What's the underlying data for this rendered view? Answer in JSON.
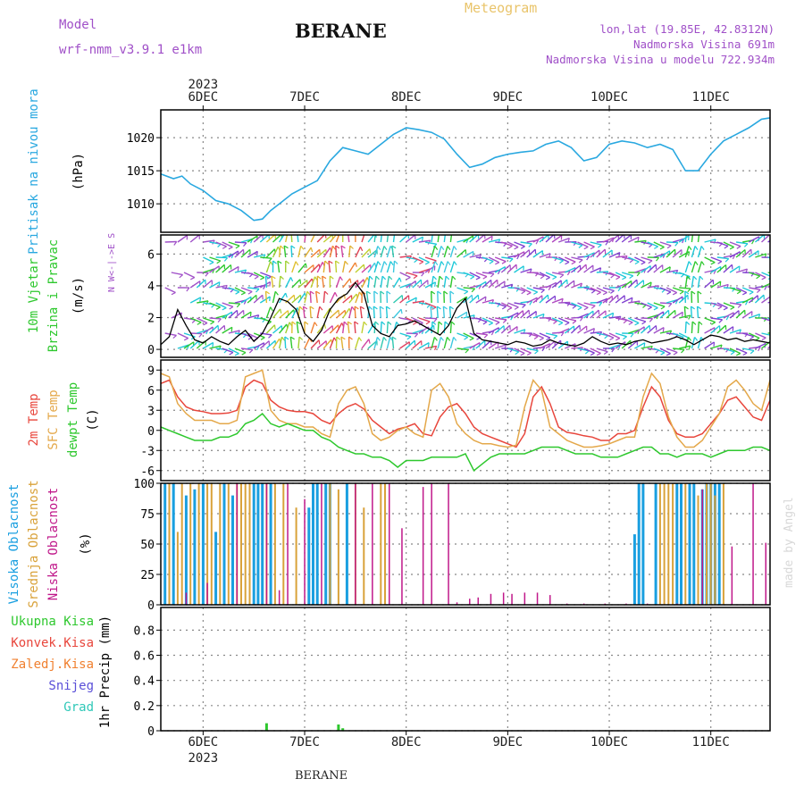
{
  "header": {
    "model_label": "Model",
    "model_name": "wrf-nmm_v3.9.1 e1km",
    "station": "BERANE",
    "meteogram_label": "Meteogram",
    "lonlat": "lon,lat (19.85E, 42.8312N)",
    "elevation": "Nadmorska Visina 691m",
    "model_elevation": "Nadmorska Visina u modelu 722.934m",
    "footer_station": "BERANE",
    "watermark": "made by Angel"
  },
  "colors": {
    "pressure": "#29a8e0",
    "temp2m": "#e8463c",
    "sfc": "#e4a84a",
    "dew": "#2ec82e",
    "high_cloud": "#1a9fe0",
    "mid_cloud": "#d9a23a",
    "low_cloud": "#c0188a",
    "purple_label": "#a050c8",
    "grid": "#888888"
  },
  "time_axis": {
    "year_label": "2023",
    "day_labels": [
      "6DEC",
      "7DEC",
      "8DEC",
      "9DEC",
      "10DEC",
      "11DEC"
    ],
    "start_hour": -10,
    "end_hour": 134
  },
  "chart_data": [
    {
      "type": "line",
      "name": "pressure",
      "ylabel_lines": [
        "Pritisak na nivou mora",
        "(hPa)"
      ],
      "yticks": [
        1010,
        1015,
        1020
      ],
      "ylim": [
        1005.7,
        1024.2
      ],
      "x": [
        -10,
        -7,
        -5,
        -3,
        0,
        3,
        6,
        9,
        12,
        14,
        16,
        18,
        21,
        24,
        27,
        30,
        33,
        36,
        39,
        42,
        45,
        48,
        51,
        54,
        57,
        60,
        63,
        66,
        69,
        72,
        75,
        78,
        81,
        84,
        87,
        90,
        93,
        96,
        99,
        102,
        105,
        108,
        111,
        114,
        117,
        120,
        123,
        126,
        129,
        132,
        134
      ],
      "series": [
        {
          "key": "slp",
          "values": [
            1014.5,
            1013.8,
            1014.2,
            1013.0,
            1012.0,
            1010.5,
            1010.0,
            1009.0,
            1007.5,
            1007.7,
            1009.0,
            1010.0,
            1011.5,
            1012.5,
            1013.5,
            1016.5,
            1018.5,
            1018.0,
            1017.5,
            1019.0,
            1020.5,
            1021.5,
            1021.2,
            1020.8,
            1019.8,
            1017.5,
            1015.5,
            1016.0,
            1017.0,
            1017.5,
            1017.8,
            1018.0,
            1019.0,
            1019.5,
            1018.5,
            1016.5,
            1017.0,
            1019.0,
            1019.5,
            1019.2,
            1018.5,
            1019.0,
            1018.2,
            1015.0,
            1015.0,
            1017.5,
            1019.5,
            1020.5,
            1021.5,
            1022.8,
            1023.0
          ]
        }
      ]
    },
    {
      "type": "line",
      "name": "wind",
      "ylabel_lines": [
        "10m Vjetar",
        "Brzina i Pravac",
        "(m/s)"
      ],
      "compass_label": "N  W<-|->E  S",
      "yticks": [
        0,
        2,
        4,
        6
      ],
      "ylim": [
        -0.5,
        7.2
      ],
      "x": [
        -10,
        -8,
        -6,
        -4,
        -2,
        0,
        2,
        4,
        6,
        8,
        10,
        12,
        14,
        16,
        18,
        20,
        22,
        24,
        26,
        28,
        30,
        32,
        34,
        36,
        38,
        40,
        42,
        44,
        46,
        48,
        50,
        52,
        54,
        56,
        58,
        60,
        62,
        64,
        66,
        68,
        70,
        72,
        74,
        76,
        78,
        80,
        82,
        84,
        86,
        88,
        90,
        92,
        94,
        96,
        98,
        100,
        102,
        104,
        106,
        108,
        110,
        112,
        114,
        116,
        118,
        120,
        122,
        124,
        126,
        128,
        130,
        132,
        134
      ],
      "series": [
        {
          "key": "speed",
          "values": [
            0.3,
            0.8,
            2.5,
            1.5,
            0.6,
            0.4,
            0.8,
            0.5,
            0.3,
            0.8,
            1.2,
            0.5,
            1.0,
            2.0,
            3.2,
            3.0,
            2.5,
            1.0,
            0.5,
            1.2,
            2.5,
            3.2,
            3.5,
            4.2,
            3.5,
            1.5,
            1.0,
            0.8,
            1.5,
            1.6,
            1.8,
            1.5,
            1.2,
            0.9,
            1.5,
            2.6,
            3.2,
            1.0,
            0.6,
            0.5,
            0.4,
            0.3,
            0.5,
            0.4,
            0.2,
            0.3,
            0.6,
            0.4,
            0.3,
            0.2,
            0.4,
            0.8,
            0.5,
            0.3,
            0.4,
            0.3,
            0.5,
            0.6,
            0.4,
            0.5,
            0.6,
            0.8,
            0.6,
            0.3,
            0.6,
            0.9,
            0.8,
            0.6,
            0.7,
            0.5,
            0.6,
            0.5,
            0.4
          ]
        }
      ]
    },
    {
      "type": "line",
      "name": "temperature",
      "ylabel_lines": [
        "2m Temp",
        "SFC Temp",
        "dewpt Temp",
        "(C)"
      ],
      "yticks": [
        -6,
        -3,
        0,
        3,
        6,
        9
      ],
      "ylim": [
        -7.5,
        10.5
      ],
      "x": [
        -10,
        -8,
        -6,
        -4,
        -2,
        0,
        2,
        4,
        6,
        8,
        10,
        12,
        14,
        16,
        18,
        20,
        22,
        24,
        26,
        28,
        30,
        32,
        34,
        36,
        38,
        40,
        42,
        44,
        46,
        48,
        50,
        52,
        54,
        56,
        58,
        60,
        62,
        64,
        66,
        68,
        70,
        72,
        74,
        76,
        78,
        80,
        82,
        84,
        86,
        88,
        90,
        92,
        94,
        96,
        98,
        100,
        102,
        104,
        106,
        108,
        110,
        112,
        114,
        116,
        118,
        120,
        122,
        124,
        126,
        128,
        130,
        132,
        134
      ],
      "series": [
        {
          "key": "t2m",
          "values": [
            7.0,
            7.5,
            5.0,
            3.5,
            3.0,
            2.8,
            2.5,
            2.5,
            2.6,
            3.0,
            6.5,
            7.5,
            7.0,
            4.5,
            3.5,
            3.0,
            2.8,
            2.8,
            2.5,
            1.5,
            1.0,
            2.5,
            3.5,
            4.0,
            3.2,
            1.5,
            0.5,
            -0.5,
            0.2,
            0.5,
            1.0,
            -0.5,
            -0.8,
            2.0,
            3.5,
            4.0,
            2.5,
            0.5,
            -0.5,
            -1.0,
            -1.5,
            -2.0,
            -2.5,
            -0.5,
            5.0,
            6.5,
            4.0,
            0.5,
            -0.3,
            -0.5,
            -0.8,
            -1.0,
            -1.5,
            -1.5,
            -0.5,
            -0.5,
            0.0,
            3.5,
            6.5,
            5.0,
            1.5,
            -0.5,
            -1.0,
            -1.0,
            -0.5,
            1.0,
            2.5,
            4.5,
            5.0,
            3.5,
            2.0,
            1.5,
            4.5
          ]
        },
        {
          "key": "sfc",
          "values": [
            8.5,
            8.0,
            4.0,
            2.5,
            1.5,
            1.5,
            1.5,
            1.0,
            1.0,
            1.5,
            8.0,
            8.5,
            9.0,
            3.0,
            1.5,
            1.0,
            1.0,
            0.5,
            0.5,
            -0.5,
            -1.0,
            4.0,
            6.0,
            6.5,
            4.0,
            -0.5,
            -1.5,
            -1.0,
            0.0,
            0.5,
            -0.5,
            -1.0,
            6.0,
            7.0,
            5.0,
            1.0,
            -0.5,
            -1.5,
            -2.0,
            -2.0,
            -2.3,
            -2.5,
            -2.2,
            3.5,
            7.5,
            6.0,
            0.5,
            -0.5,
            -1.5,
            -2.0,
            -2.5,
            -2.5,
            -2.3,
            -2.0,
            -1.5,
            -1.0,
            -1.0,
            5.0,
            8.5,
            7.0,
            2.0,
            -1.0,
            -2.5,
            -2.5,
            -1.5,
            0.5,
            2.5,
            6.5,
            7.5,
            6.0,
            4.0,
            3.0,
            7.5
          ]
        },
        {
          "key": "dew",
          "values": [
            0.5,
            0.0,
            -0.5,
            -1.0,
            -1.5,
            -1.5,
            -1.5,
            -1.0,
            -1.0,
            -0.5,
            1.0,
            1.5,
            2.5,
            1.0,
            0.5,
            1.0,
            0.5,
            0.0,
            0.0,
            -1.0,
            -1.5,
            -2.5,
            -3.0,
            -3.5,
            -3.5,
            -4.0,
            -4.0,
            -4.5,
            -5.5,
            -4.5,
            -4.5,
            -4.5,
            -4.0,
            -4.0,
            -4.0,
            -4.0,
            -3.5,
            -6.0,
            -5.0,
            -4.0,
            -3.5,
            -3.5,
            -3.5,
            -3.5,
            -3.0,
            -2.5,
            -2.5,
            -2.5,
            -3.0,
            -3.5,
            -3.5,
            -3.5,
            -4.0,
            -4.0,
            -4.0,
            -3.5,
            -3.0,
            -2.5,
            -2.5,
            -3.5,
            -3.5,
            -4.0,
            -3.5,
            -3.5,
            -3.5,
            -4.0,
            -3.5,
            -3.0,
            -3.0,
            -3.0,
            -2.5,
            -2.5,
            -3.0
          ]
        }
      ]
    },
    {
      "type": "bar",
      "name": "cloud_cover",
      "ylabel_lines": [
        "Visoka Oblacnost",
        "Srednja Oblacnost",
        "Niska Oblacnost",
        "(%)"
      ],
      "yticks": [
        0,
        25,
        50,
        75,
        100
      ],
      "ylim": [
        0,
        100
      ],
      "series": [
        {
          "key": "high",
          "x": [
            -9,
            -7,
            -4,
            -2,
            0,
            3,
            5,
            7,
            12,
            13,
            14,
            16,
            25,
            26,
            27,
            29,
            30,
            34,
            102,
            103,
            104,
            107,
            112,
            113,
            115,
            116,
            118,
            119,
            120,
            121,
            122
          ],
          "values": [
            100,
            100,
            90,
            95,
            100,
            60,
            100,
            90,
            100,
            100,
            100,
            100,
            80,
            100,
            100,
            100,
            100,
            100,
            58,
            100,
            100,
            100,
            100,
            100,
            100,
            100,
            95,
            100,
            100,
            100,
            100
          ]
        },
        {
          "key": "mid",
          "x": [
            -8,
            -6,
            -5,
            -3,
            -1,
            1,
            2,
            4,
            6,
            8,
            9,
            10,
            11,
            15,
            17,
            19,
            22,
            30,
            32,
            36,
            38,
            42,
            43,
            108,
            109,
            110,
            111,
            114,
            117,
            119,
            120,
            121,
            123
          ],
          "values": [
            100,
            60,
            100,
            100,
            100,
            100,
            100,
            100,
            100,
            100,
            100,
            100,
            100,
            100,
            100,
            100,
            80,
            100,
            95,
            100,
            80,
            100,
            100,
            100,
            100,
            100,
            100,
            100,
            90,
            100,
            100,
            90,
            100
          ]
        },
        {
          "key": "low",
          "x": [
            -4,
            1,
            8,
            15,
            18,
            20,
            24,
            28,
            36,
            40,
            44,
            47,
            52,
            54,
            58,
            60,
            63,
            65,
            68,
            71,
            73,
            76,
            79,
            82,
            86,
            90,
            95,
            100,
            105,
            112,
            118,
            125,
            130,
            133
          ],
          "values": [
            10,
            18,
            100,
            100,
            12,
            100,
            87,
            100,
            100,
            100,
            100,
            63,
            97,
            100,
            100,
            2,
            5,
            6,
            9,
            10,
            9,
            10,
            10,
            8,
            1,
            1,
            1,
            1,
            1,
            1,
            95,
            48,
            100,
            51
          ]
        }
      ]
    },
    {
      "type": "bar",
      "name": "precipitation",
      "ylabel_lines": [
        "1hr Precip (mm)"
      ],
      "legend": [
        "Ukupna Kisa",
        "Konvek.Kisa",
        "Zaledj.Kisa",
        "Snijeg",
        "Grad"
      ],
      "legend_colors": [
        "#2ec82e",
        "#e8463c",
        "#f08030",
        "#5a4fd8",
        "#2fc8b8"
      ],
      "yticks": [
        0,
        0.2,
        0.4,
        0.6,
        0.8
      ],
      "ylim": [
        0,
        0.98
      ],
      "series": [
        {
          "key": "total",
          "x": [
            15,
            32,
            33
          ],
          "values": [
            0.06,
            0.05,
            0.02
          ]
        }
      ]
    }
  ]
}
